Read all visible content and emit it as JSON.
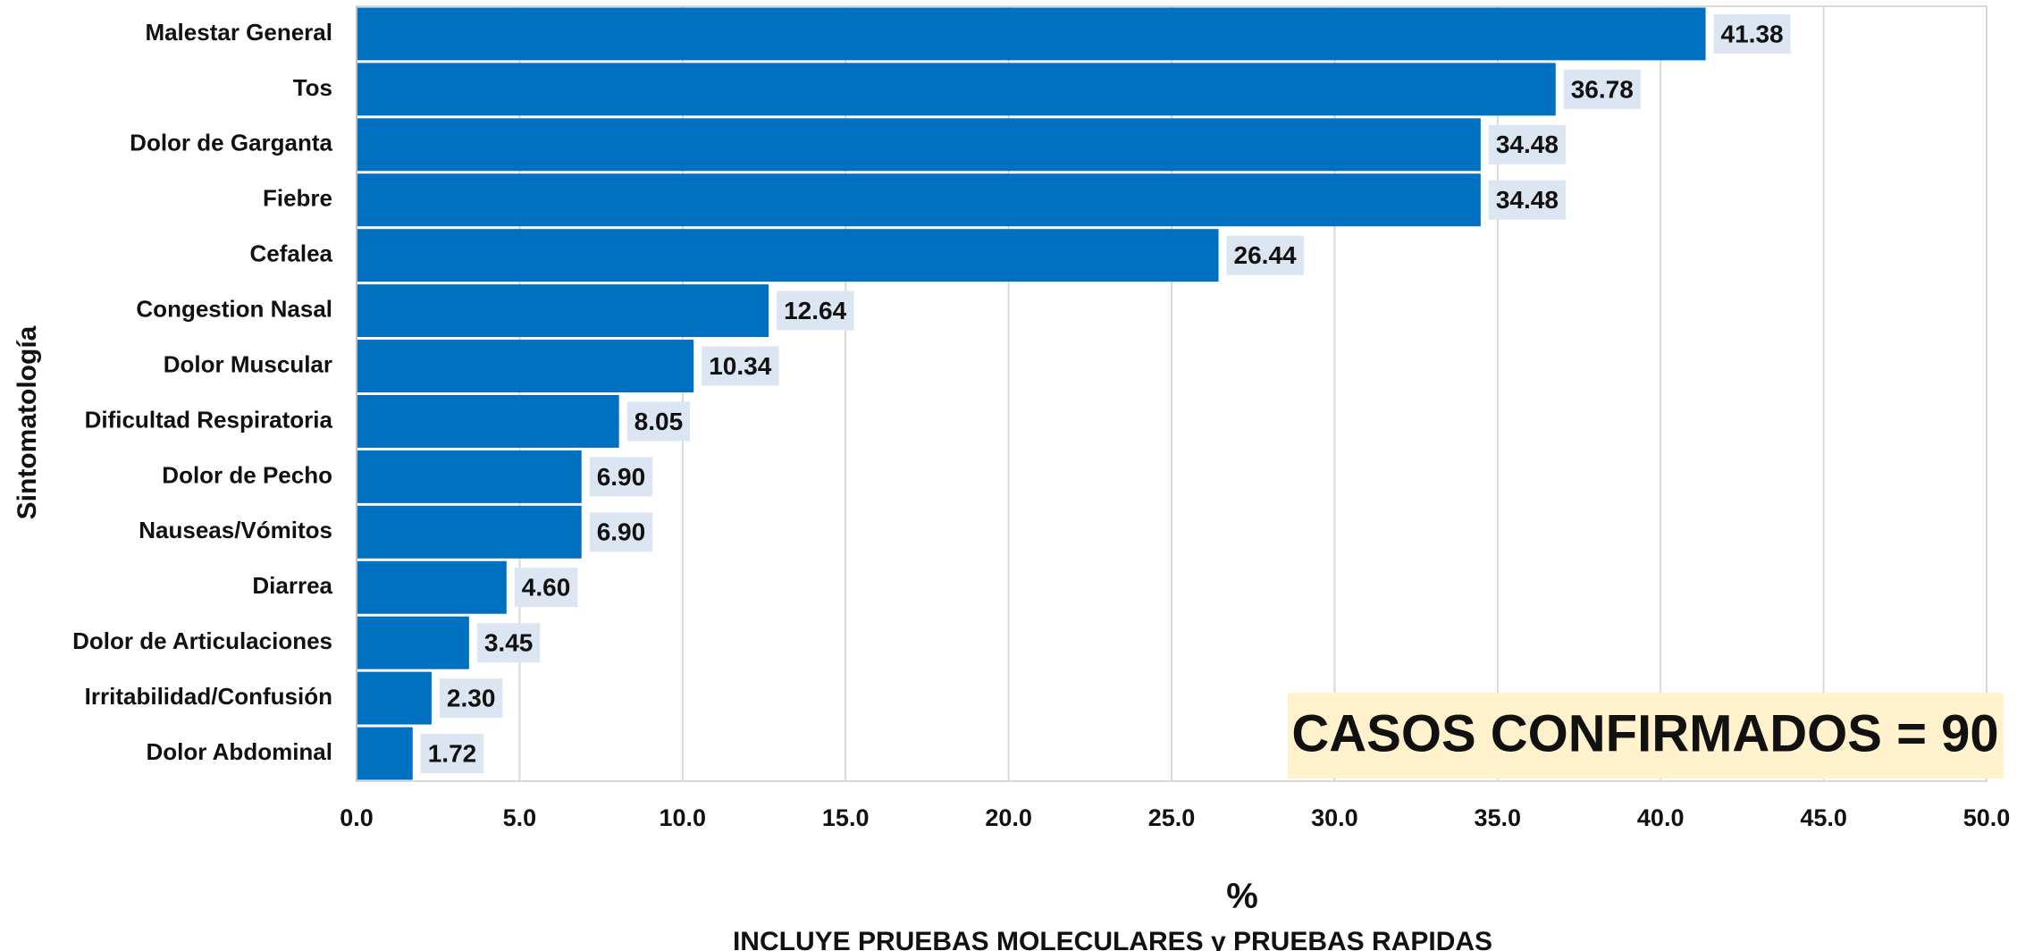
{
  "chart_data": {
    "type": "barh",
    "categories": [
      "Malestar General",
      "Tos",
      "Dolor de Garganta",
      "Fiebre",
      "Cefalea",
      "Congestion Nasal",
      "Dolor Muscular",
      "Dificultad Respiratoria",
      "Dolor de Pecho",
      "Nauseas/Vómitos",
      "Diarrea",
      "Dolor de Articulaciones",
      "Irritabilidad/Confusión",
      "Dolor Abdominal"
    ],
    "values": [
      41.38,
      36.78,
      34.48,
      34.48,
      26.44,
      12.64,
      10.34,
      8.05,
      6.9,
      6.9,
      4.6,
      3.45,
      2.3,
      1.72
    ],
    "value_labels": [
      "41.38",
      "36.78",
      "34.48",
      "34.48",
      "26.44",
      "12.64",
      "10.34",
      "8.05",
      "6.90",
      "6.90",
      "4.60",
      "3.45",
      "2.30",
      "1.72"
    ],
    "color": "#0070c0",
    "xlim": [
      0,
      50
    ],
    "xticks": [
      {
        "value": 0,
        "label": "0.0"
      },
      {
        "value": 5,
        "label": "5.0"
      },
      {
        "value": 10,
        "label": "10.0"
      },
      {
        "value": 15,
        "label": "15.0"
      },
      {
        "value": 20,
        "label": "20.0"
      },
      {
        "value": 25,
        "label": "25.0"
      },
      {
        "value": 30,
        "label": "30.0"
      },
      {
        "value": 35,
        "label": "35.0"
      },
      {
        "value": 40,
        "label": "40.0"
      },
      {
        "value": 45,
        "label": "45.0"
      },
      {
        "value": 50,
        "label": "50.0"
      }
    ],
    "grid": true,
    "ylabel": "Sintomatología",
    "xlabel": "%",
    "subtitle": "INCLUYE PRUEBAS MOLECULARES y PRUEBAS RAPIDAS",
    "annotation": "CASOS CONFIRMADOS = 90"
  }
}
